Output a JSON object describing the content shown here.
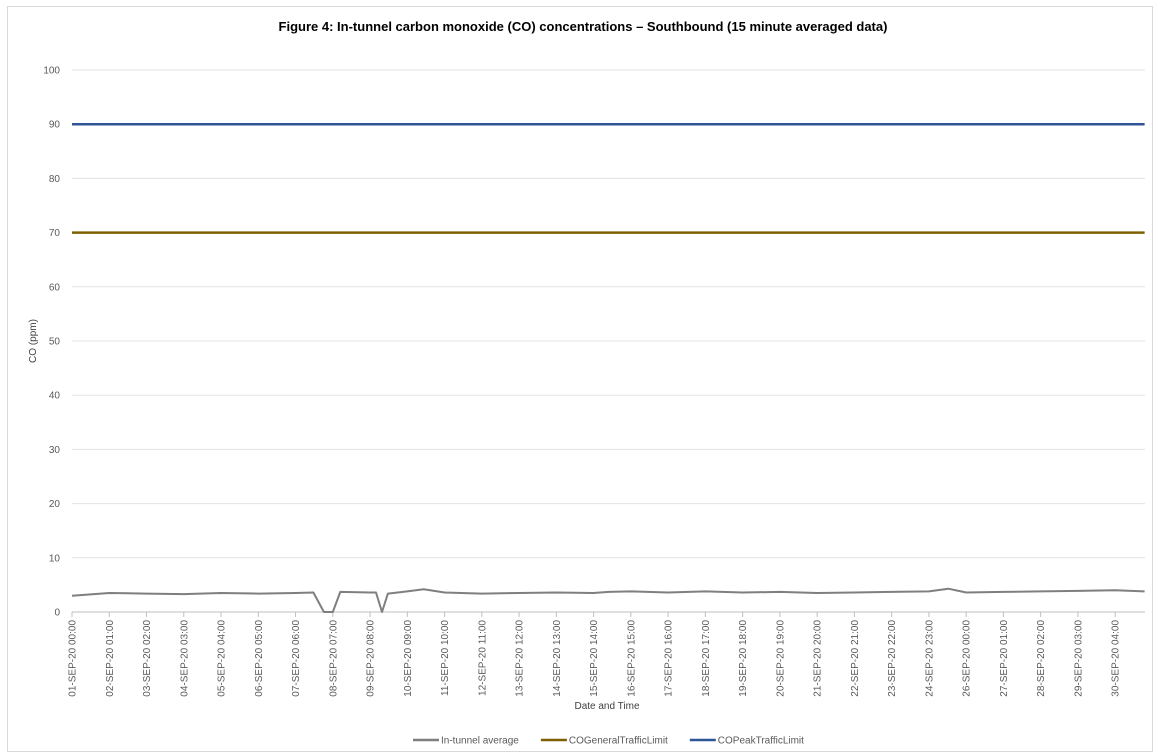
{
  "chart_data": {
    "type": "line",
    "title": "Figure 4: In-tunnel carbon monoxide (CO) concentrations – Southbound (15 minute averaged data)",
    "xlabel": "Date and Time",
    "ylabel": "CO (ppm)",
    "ylim": [
      0,
      100
    ],
    "yticks": [
      0,
      10,
      20,
      30,
      40,
      50,
      60,
      70,
      80,
      90,
      100
    ],
    "grid": true,
    "legend_position": "bottom",
    "x_tick_labels": [
      "01-SEP-20 00:00",
      "02-SEP-20 01:00",
      "03-SEP-20 02:00",
      "04-SEP-20 03:00",
      "05-SEP-20 04:00",
      "06-SEP-20 05:00",
      "07-SEP-20 06:00",
      "08-SEP-20 07:00",
      "09-SEP-20 08:00",
      "10-SEP-20 09:00",
      "11-SEP-20 10:00",
      "12-SEP-20 11:00",
      "13-SEP-20 12:00",
      "14-SEP-20 13:00",
      "15-SEP-20 14:00",
      "16-SEP-20 15:00",
      "17-SEP-20 16:00",
      "18-SEP-20 17:00",
      "19-SEP-20 18:00",
      "20-SEP-20 19:00",
      "21-SEP-20 20:00",
      "22-SEP-20 21:00",
      "23-SEP-20 22:00",
      "24-SEP-20 23:00",
      "26-SEP-20 00:00",
      "27-SEP-20 01:00",
      "28-SEP-20 02:00",
      "29-SEP-20 03:00",
      "30-SEP-20 04:00"
    ],
    "series": [
      {
        "name": "In-tunnel average",
        "color": "#7f7f7f",
        "x": [
          "01-SEP-20 00:00",
          "02-SEP-20 01:00",
          "03-SEP-20 02:00",
          "04-SEP-20 03:00",
          "05-SEP-20 04:00",
          "06-SEP-20 05:00",
          "07-SEP-20 06:00",
          "07-SEP-20 18:00",
          "08-SEP-20 01:00",
          "08-SEP-20 07:00",
          "08-SEP-20 12:00",
          "09-SEP-20 08:00",
          "09-SEP-20 12:00",
          "09-SEP-20 16:00",
          "09-SEP-20 20:00",
          "10-SEP-20 09:00",
          "10-SEP-20 20:00",
          "11-SEP-20 10:00",
          "12-SEP-20 11:00",
          "13-SEP-20 12:00",
          "14-SEP-20 13:00",
          "15-SEP-20 14:00",
          "16-SEP-20 00:00",
          "16-SEP-20 15:00",
          "17-SEP-20 16:00",
          "18-SEP-20 17:00",
          "19-SEP-20 18:00",
          "20-SEP-20 19:00",
          "21-SEP-20 20:00",
          "22-SEP-20 21:00",
          "23-SEP-20 22:00",
          "24-SEP-20 23:00",
          "25-SEP-20 12:00",
          "26-SEP-20 00:00",
          "27-SEP-20 01:00",
          "28-SEP-20 02:00",
          "29-SEP-20 03:00",
          "30-SEP-20 04:00",
          "30-SEP-20 23:45"
        ],
        "values": [
          3.0,
          3.5,
          3.4,
          3.3,
          3.5,
          3.4,
          3.5,
          3.6,
          0,
          0,
          3.7,
          3.6,
          3.6,
          0,
          3.4,
          3.8,
          4.2,
          3.6,
          3.4,
          3.5,
          3.6,
          3.5,
          3.7,
          3.8,
          3.6,
          3.8,
          3.6,
          3.7,
          3.5,
          3.6,
          3.7,
          3.8,
          4.3,
          3.6,
          3.7,
          3.8,
          3.9,
          4.0,
          3.8
        ]
      },
      {
        "name": "COGeneralTrafficLimit",
        "color": "#7f6000",
        "x": [
          "01-SEP-20 00:00",
          "30-SEP-20 23:45"
        ],
        "values": [
          70,
          70
        ]
      },
      {
        "name": "COPeakTrafficLimit",
        "color": "#2f5597",
        "x": [
          "01-SEP-20 00:00",
          "30-SEP-20 23:45"
        ],
        "values": [
          90,
          90
        ]
      }
    ]
  }
}
